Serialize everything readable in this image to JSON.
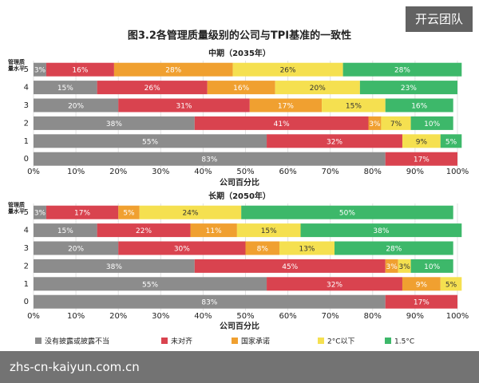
{
  "title": "图3.2各管理质量级别的公司与TPI基准的一致性",
  "watermarks": {
    "badge": "开云团队",
    "url": "zhs-cn-kaiyun.com.cn"
  },
  "chart_data": [
    {
      "type": "bar",
      "orientation": "horizontal",
      "stacked": true,
      "subtitle": "中期（2035年）",
      "ylabel": "管理质量水平",
      "xlabel": "公司百分比",
      "categories": [
        "5",
        "4",
        "3",
        "2",
        "1",
        "0"
      ],
      "xlim": [
        0,
        100
      ],
      "xticks": [
        {
          "value": 0,
          "label": "0%"
        },
        {
          "value": 10,
          "label": "10%"
        },
        {
          "value": 20,
          "label": "20%"
        },
        {
          "value": 30,
          "label": "30%"
        },
        {
          "value": 40,
          "label": "40%"
        },
        {
          "value": 50,
          "label": "50%"
        },
        {
          "value": 60,
          "label": "60%"
        },
        {
          "value": 70,
          "label": "70%"
        },
        {
          "value": 80,
          "label": "80%"
        },
        {
          "value": 90,
          "label": "90%"
        },
        {
          "value": 100,
          "label": "100%"
        }
      ],
      "grid": true,
      "series": [
        {
          "color": "#8c8c8c",
          "values": [
            3,
            15,
            20,
            38,
            55,
            83
          ],
          "value_labels": [
            "3%",
            "15%",
            "20%",
            "38%",
            "55%",
            "83%"
          ]
        },
        {
          "color": "#d9434f",
          "values": [
            16,
            26,
            31,
            41,
            32,
            17
          ],
          "value_labels": [
            "16%",
            "26%",
            "31%",
            "41%",
            "32%",
            "17%"
          ]
        },
        {
          "color": "#f0a030",
          "values": [
            28,
            16,
            17,
            3,
            0,
            0
          ],
          "value_labels": [
            "28%",
            "16%",
            "17%",
            "3%",
            null,
            null
          ]
        },
        {
          "color": "#f5e050",
          "values": [
            26,
            20,
            15,
            7,
            9,
            0
          ],
          "value_labels": [
            "26%",
            "20%",
            "15%",
            "7%",
            "9%",
            null
          ]
        },
        {
          "color": "#3db86a",
          "values": [
            28,
            23,
            16,
            10,
            5,
            0
          ],
          "value_labels": [
            "28%",
            "23%",
            "16%",
            "10%",
            "5%",
            null
          ]
        }
      ]
    },
    {
      "type": "bar",
      "orientation": "horizontal",
      "stacked": true,
      "subtitle": "长期（2050年）",
      "ylabel": "管理质量水平",
      "xlabel": "公司百分比",
      "categories": [
        "5",
        "4",
        "3",
        "2",
        "1",
        "0"
      ],
      "xlim": [
        0,
        100
      ],
      "xticks": [
        {
          "value": 0,
          "label": "0%"
        },
        {
          "value": 10,
          "label": "10%"
        },
        {
          "value": 20,
          "label": "20%"
        },
        {
          "value": 30,
          "label": "30%"
        },
        {
          "value": 40,
          "label": "40%"
        },
        {
          "value": 50,
          "label": "50%"
        },
        {
          "value": 60,
          "label": "60%"
        },
        {
          "value": 70,
          "label": "70%"
        },
        {
          "value": 80,
          "label": "80%"
        },
        {
          "value": 90,
          "label": "90%"
        },
        {
          "value": 100,
          "label": "100%"
        }
      ],
      "grid": true,
      "series": [
        {
          "name": "没有披露或披露不当",
          "color": "#8c8c8c",
          "values": [
            3,
            15,
            20,
            38,
            55,
            83
          ],
          "value_labels": [
            "3%",
            "15%",
            "20%",
            "38%",
            "55%",
            "83%"
          ]
        },
        {
          "name": "未对齐",
          "color": "#d9434f",
          "values": [
            17,
            22,
            30,
            45,
            32,
            17
          ],
          "value_labels": [
            "17%",
            "22%",
            "30%",
            "45%",
            "32%",
            "17%"
          ]
        },
        {
          "name": "国家承诺",
          "color": "#f0a030",
          "values": [
            5,
            11,
            8,
            3,
            9,
            0
          ],
          "value_labels": [
            "5%",
            "11%",
            "8%",
            "3%",
            "9%",
            null
          ]
        },
        {
          "name": "2°C以下",
          "color": "#f5e050",
          "values": [
            24,
            15,
            13,
            3,
            5,
            0
          ],
          "value_labels": [
            "24%",
            "15%",
            "13%",
            "3%",
            "5%",
            null
          ]
        },
        {
          "name": "1.5°C",
          "color": "#3db86a",
          "values": [
            50,
            38,
            28,
            10,
            0,
            0
          ],
          "value_labels": [
            "50%",
            "38%",
            "28%",
            "10%",
            null,
            null
          ]
        }
      ]
    }
  ]
}
